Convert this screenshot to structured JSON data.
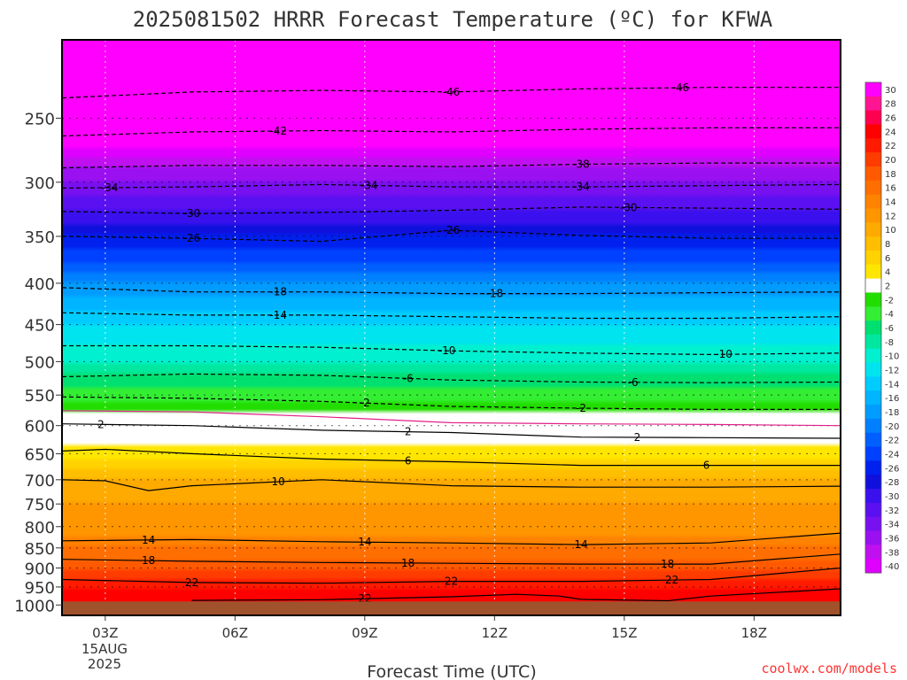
{
  "chart_data": {
    "type": "heatmap",
    "title": "2025081502 HRRR Forecast Temperature (ºC) for KFWA",
    "xlabel": "Forecast Time (UTC)",
    "ylabel": "",
    "credit": "coolwx.com/models",
    "x_ticks": [
      "03Z",
      "06Z",
      "09Z",
      "12Z",
      "15Z",
      "18Z"
    ],
    "x_hours": [
      3,
      6,
      9,
      12,
      15,
      18
    ],
    "x_range_hours": [
      2,
      20
    ],
    "date_line1": "15AUG",
    "date_line2": "2025",
    "y_ticks": [
      250,
      300,
      350,
      400,
      450,
      500,
      550,
      600,
      650,
      700,
      750,
      800,
      850,
      900,
      950,
      1000
    ],
    "y_range_hpa": [
      200,
      1030
    ],
    "ground_hpa": 990,
    "colorbar": {
      "labels": [
        "30",
        "28",
        "26",
        "24",
        "22",
        "20",
        "18",
        "16",
        "14",
        "12",
        "10",
        "8",
        "6",
        "4",
        "2",
        "-2",
        "-4",
        "-6",
        "-8",
        "-10",
        "-12",
        "-14",
        "-16",
        "-18",
        "-20",
        "-22",
        "-24",
        "-26",
        "-28",
        "-30",
        "-32",
        "-34",
        "-36",
        "-38",
        "-40"
      ],
      "colors": [
        "#ff00ff",
        "#ff1493",
        "#ff0050",
        "#ff0000",
        "#ff1a00",
        "#ff3c00",
        "#ff5a00",
        "#ff6e00",
        "#ff8200",
        "#ff9600",
        "#ffaa00",
        "#ffbe00",
        "#ffd200",
        "#ffe600",
        "#ffffff",
        "#22dd00",
        "#33ee33",
        "#00e070",
        "#00e8a0",
        "#00f0d0",
        "#00e4f0",
        "#00ccff",
        "#00b4ff",
        "#009cff",
        "#0080ff",
        "#0060ff",
        "#0040ff",
        "#0020ee",
        "#1010dd",
        "#3a10ee",
        "#5a10f0",
        "#7810f0",
        "#9a10f0",
        "#c010f0",
        "#e000ff"
      ]
    },
    "temperature_profile_degC": [
      {
        "p": 200,
        "t": -54
      },
      {
        "p": 250,
        "t": -44
      },
      {
        "p": 300,
        "t": -35
      },
      {
        "p": 350,
        "t": -27
      },
      {
        "p": 400,
        "t": -19
      },
      {
        "p": 450,
        "t": -13
      },
      {
        "p": 500,
        "t": -9
      },
      {
        "p": 550,
        "t": -4
      },
      {
        "p": 600,
        "t": 0
      },
      {
        "p": 650,
        "t": 4
      },
      {
        "p": 700,
        "t": 9
      },
      {
        "p": 750,
        "t": 11
      },
      {
        "p": 800,
        "t": 12
      },
      {
        "p": 850,
        "t": 15
      },
      {
        "p": 900,
        "t": 19
      },
      {
        "p": 950,
        "t": 23
      },
      {
        "p": 990,
        "t": 24
      }
    ],
    "contours": [
      {
        "value": "-46",
        "style": "dash",
        "points": [
          [
            2,
            236
          ],
          [
            5,
            232
          ],
          [
            8,
            231
          ],
          [
            11,
            232
          ],
          [
            14,
            230
          ],
          [
            17,
            229
          ],
          [
            20,
            229
          ]
        ],
        "labels": [
          11,
          16.3
        ]
      },
      {
        "value": "-42",
        "style": "dash",
        "points": [
          [
            2,
            263
          ],
          [
            5,
            260
          ],
          [
            8,
            259
          ],
          [
            11,
            260
          ],
          [
            14,
            258
          ],
          [
            17,
            257
          ],
          [
            20,
            257
          ]
        ],
        "labels": [
          7
        ]
      },
      {
        "value": "-38",
        "style": "dash",
        "points": [
          [
            2,
            288
          ],
          [
            5,
            286
          ],
          [
            8,
            286
          ],
          [
            11,
            287
          ],
          [
            14,
            285
          ],
          [
            17,
            284
          ],
          [
            20,
            284
          ]
        ],
        "labels": [
          14
        ]
      },
      {
        "value": "-34",
        "style": "dash",
        "points": [
          [
            2,
            305
          ],
          [
            5,
            304
          ],
          [
            8,
            302
          ],
          [
            11,
            304
          ],
          [
            14,
            304
          ],
          [
            17,
            303
          ],
          [
            20,
            302
          ]
        ],
        "labels": [
          3.1,
          9.1,
          14
        ]
      },
      {
        "value": "-30",
        "style": "dash",
        "points": [
          [
            2,
            326
          ],
          [
            5,
            328
          ],
          [
            8,
            327
          ],
          [
            11,
            325
          ],
          [
            14,
            322
          ],
          [
            17,
            323
          ],
          [
            20,
            324
          ]
        ],
        "labels": [
          5,
          15.1
        ]
      },
      {
        "value": "-26",
        "style": "dash",
        "points": [
          [
            2,
            350
          ],
          [
            5,
            352
          ],
          [
            8,
            355
          ],
          [
            11,
            344
          ],
          [
            14,
            349
          ],
          [
            17,
            352
          ],
          [
            20,
            352
          ]
        ],
        "labels": [
          5,
          11
        ]
      },
      {
        "value": "-18",
        "style": "dash",
        "points": [
          [
            2,
            405
          ],
          [
            5,
            410
          ],
          [
            8,
            410
          ],
          [
            11,
            412
          ],
          [
            14,
            412
          ],
          [
            17,
            411
          ],
          [
            20,
            410
          ]
        ],
        "labels": [
          7,
          12
        ]
      },
      {
        "value": "-14",
        "style": "dash",
        "points": [
          [
            2,
            435
          ],
          [
            5,
            438
          ],
          [
            8,
            438
          ],
          [
            11,
            440
          ],
          [
            14,
            442
          ],
          [
            17,
            442
          ],
          [
            20,
            440
          ]
        ],
        "labels": [
          7
        ]
      },
      {
        "value": "-10",
        "style": "dash",
        "points": [
          [
            2,
            478
          ],
          [
            5,
            478
          ],
          [
            8,
            480
          ],
          [
            11,
            485
          ],
          [
            14,
            488
          ],
          [
            17,
            490
          ],
          [
            20,
            488
          ]
        ],
        "labels": [
          10.9,
          17.3
        ]
      },
      {
        "value": "-6",
        "style": "dash",
        "points": [
          [
            2,
            522
          ],
          [
            5,
            518
          ],
          [
            8,
            520
          ],
          [
            11,
            527
          ],
          [
            14,
            530
          ],
          [
            17,
            531
          ],
          [
            20,
            530
          ]
        ],
        "labels": [
          10,
          15.2
        ]
      },
      {
        "value": "-2",
        "style": "dash",
        "points": [
          [
            2,
            553
          ],
          [
            5,
            555
          ],
          [
            8,
            560
          ],
          [
            11,
            568
          ],
          [
            14,
            571
          ],
          [
            17,
            573
          ],
          [
            20,
            573
          ]
        ],
        "labels": [
          9,
          14
        ]
      },
      {
        "value": "0",
        "style": "pink",
        "points": [
          [
            2,
            575
          ],
          [
            5,
            577
          ],
          [
            8,
            585
          ],
          [
            11,
            595
          ],
          [
            14,
            597
          ],
          [
            17,
            598
          ],
          [
            20,
            600
          ]
        ],
        "labels": []
      },
      {
        "value": "2",
        "style": "solid",
        "points": [
          [
            2,
            597
          ],
          [
            5,
            600
          ],
          [
            8,
            608
          ],
          [
            11,
            612
          ],
          [
            14,
            620
          ],
          [
            17,
            621
          ],
          [
            20,
            622
          ]
        ],
        "labels": [
          2.9,
          10,
          15.3
        ]
      },
      {
        "value": "6",
        "style": "solid",
        "points": [
          [
            2,
            645
          ],
          [
            3,
            642
          ],
          [
            5,
            650
          ],
          [
            8,
            660
          ],
          [
            11,
            665
          ],
          [
            14,
            672
          ],
          [
            17,
            672
          ],
          [
            20,
            672
          ]
        ],
        "labels": [
          10,
          16.9
        ]
      },
      {
        "value": "10",
        "style": "solid",
        "points": [
          [
            2,
            700
          ],
          [
            3,
            702
          ],
          [
            4,
            722
          ],
          [
            5,
            712
          ],
          [
            8,
            700
          ],
          [
            11,
            712
          ],
          [
            14,
            715
          ],
          [
            17,
            715
          ],
          [
            20,
            713
          ]
        ],
        "labels": [
          7
        ]
      },
      {
        "value": "14",
        "style": "solid",
        "points": [
          [
            2,
            833
          ],
          [
            5,
            830
          ],
          [
            8,
            835
          ],
          [
            11,
            838
          ],
          [
            14,
            842
          ],
          [
            17,
            838
          ],
          [
            20,
            815
          ]
        ],
        "labels": [
          4,
          9,
          14
        ]
      },
      {
        "value": "18",
        "style": "solid",
        "points": [
          [
            2,
            878
          ],
          [
            5,
            883
          ],
          [
            8,
            886
          ],
          [
            11,
            888
          ],
          [
            14,
            890
          ],
          [
            17,
            890
          ],
          [
            20,
            865
          ]
        ],
        "labels": [
          4,
          10,
          16
        ]
      },
      {
        "value": "22",
        "style": "solid",
        "points": [
          [
            2,
            930
          ],
          [
            5,
            938
          ],
          [
            8,
            940
          ],
          [
            11,
            935
          ],
          [
            14,
            935
          ],
          [
            17,
            930
          ],
          [
            20,
            900
          ]
        ],
        "labels": [
          5,
          11,
          16.1
        ]
      },
      {
        "value": "22",
        "style": "solid",
        "points": [
          [
            5,
            987
          ],
          [
            8,
            985
          ],
          [
            11,
            977
          ],
          [
            12.5,
            970
          ],
          [
            13.5,
            975
          ],
          [
            14,
            984
          ],
          [
            16,
            988
          ],
          [
            17,
            975
          ],
          [
            20,
            955
          ]
        ],
        "labels": [
          9
        ]
      }
    ]
  }
}
